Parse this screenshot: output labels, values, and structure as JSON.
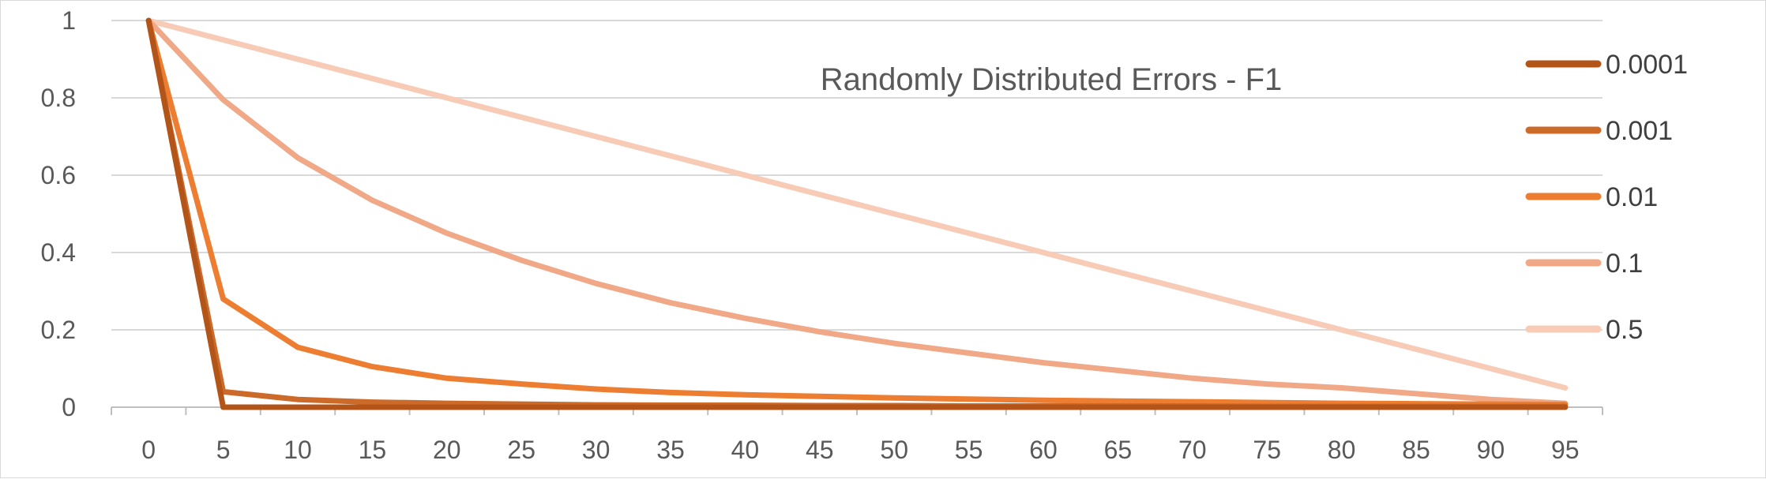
{
  "chart_data": {
    "type": "line",
    "title": "Randomly Distributed Errors - F1",
    "xlabel": "",
    "ylabel": "",
    "x": [
      0,
      5,
      10,
      15,
      20,
      25,
      30,
      35,
      40,
      45,
      50,
      55,
      60,
      65,
      70,
      75,
      80,
      85,
      90,
      95
    ],
    "y_ticks": [
      "0",
      "0.2",
      "0.4",
      "0.6",
      "0.8",
      "1"
    ],
    "ylim": [
      0,
      1
    ],
    "grid": true,
    "legend_position": "right",
    "series": [
      {
        "name": "0.0001",
        "color": "#b35418",
        "values": [
          1,
          0,
          0,
          0,
          0,
          0,
          0,
          0,
          0,
          0,
          0,
          0,
          0,
          0,
          0,
          0,
          0,
          0,
          0,
          0
        ]
      },
      {
        "name": "0.001",
        "color": "#cc6a2a",
        "values": [
          1,
          0.04,
          0.02,
          0.013,
          0.01,
          0.008,
          0.006,
          0.005,
          0.005,
          0.004,
          0.004,
          0.003,
          0.003,
          0.003,
          0.003,
          0.002,
          0.002,
          0.002,
          0.002,
          0.002
        ]
      },
      {
        "name": "0.01",
        "color": "#ed7d31",
        "values": [
          1,
          0.28,
          0.155,
          0.105,
          0.075,
          0.06,
          0.047,
          0.038,
          0.032,
          0.028,
          0.024,
          0.021,
          0.018,
          0.016,
          0.014,
          0.012,
          0.01,
          0.009,
          0.008,
          0.007
        ]
      },
      {
        "name": "0.1",
        "color": "#f0a887",
        "values": [
          1,
          0.795,
          0.645,
          0.535,
          0.45,
          0.38,
          0.32,
          0.27,
          0.23,
          0.195,
          0.165,
          0.14,
          0.115,
          0.095,
          0.075,
          0.06,
          0.05,
          0.035,
          0.02,
          0.01
        ]
      },
      {
        "name": "0.5",
        "color": "#f8cbb6",
        "values": [
          1,
          0.95,
          0.9,
          0.85,
          0.8,
          0.75,
          0.7,
          0.65,
          0.6,
          0.55,
          0.5,
          0.45,
          0.4,
          0.35,
          0.3,
          0.25,
          0.2,
          0.15,
          0.1,
          0.05
        ]
      }
    ]
  }
}
